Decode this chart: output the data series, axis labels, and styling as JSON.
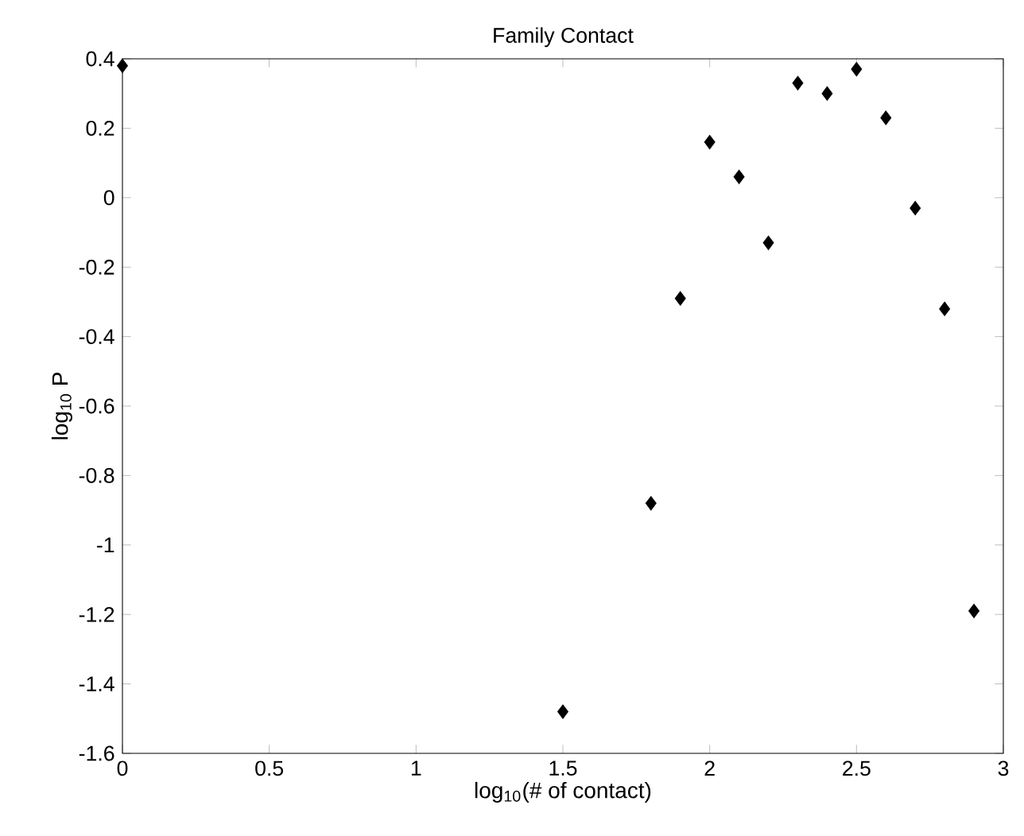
{
  "chart_data": {
    "type": "scatter",
    "title": "Family Contact",
    "xlabel": "log$_{10}$(# of contact)",
    "ylabel": "log$_{10}$ P",
    "x": [
      0,
      1.5,
      1.8,
      1.9,
      2.0,
      2.1,
      2.2,
      2.3,
      2.4,
      2.5,
      2.6,
      2.7,
      2.8,
      2.9
    ],
    "values": [
      0.38,
      -1.48,
      -0.88,
      -0.29,
      0.16,
      0.06,
      -0.13,
      0.33,
      0.3,
      0.37,
      0.23,
      -0.03,
      -0.32,
      -1.19
    ],
    "color": "#000000",
    "marker": "diamond",
    "xlim": [
      0,
      3
    ],
    "ylim": [
      -1.6,
      0.4
    ],
    "xticks": [
      0,
      0.5,
      1,
      1.5,
      2,
      2.5,
      3
    ],
    "yticks": [
      -1.6,
      -1.4,
      -1.2,
      -1,
      -0.8,
      -0.6,
      -0.4,
      -0.2,
      0,
      0.2,
      0.4
    ],
    "grid": false
  }
}
